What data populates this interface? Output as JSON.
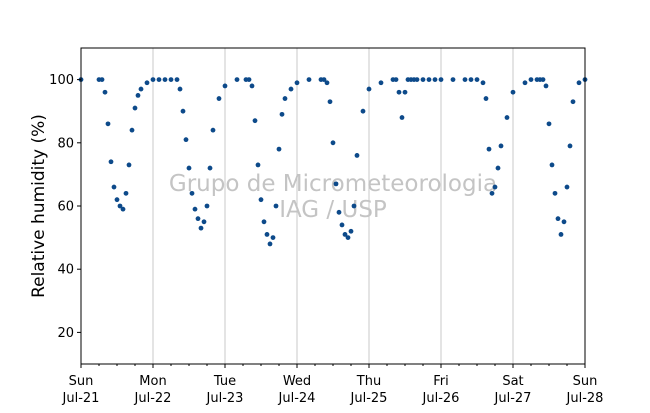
{
  "chart_data": {
    "type": "scatter",
    "ylabel": "Relative humidity (%)",
    "xlabel": "",
    "ylim": [
      10,
      110
    ],
    "y_ticks": [
      20,
      40,
      60,
      80,
      100
    ],
    "xlim": [
      "2019-07-21T00:00",
      "2019-07-28T00:00"
    ],
    "x_ticks": [
      {
        "day": "Sun",
        "date": "Jul-21"
      },
      {
        "day": "Mon",
        "date": "Jul-22"
      },
      {
        "day": "Tue",
        "date": "Jul-23"
      },
      {
        "day": "Wed",
        "date": "Jul-24"
      },
      {
        "day": "Thu",
        "date": "Jul-25"
      },
      {
        "day": "Fri",
        "date": "Jul-26"
      },
      {
        "day": "Sat",
        "date": "Jul-27"
      },
      {
        "day": "Sun",
        "date": "Jul-28"
      }
    ],
    "grid": "vertical",
    "marker_color": "#0d4a8a",
    "watermark": [
      "Grupo de Micrometeorologia",
      "IAG / USP"
    ],
    "series": [
      {
        "x": [
          "2019-07-21T00:00",
          "2019-07-21T06:00",
          "2019-07-21T07:00",
          "2019-07-21T08:00",
          "2019-07-21T09:00",
          "2019-07-21T10:00",
          "2019-07-21T11:00",
          "2019-07-21T12:00",
          "2019-07-21T13:00",
          "2019-07-21T14:00",
          "2019-07-21T15:00",
          "2019-07-21T16:00",
          "2019-07-21T17:00",
          "2019-07-21T18:00",
          "2019-07-21T19:00",
          "2019-07-21T20:00",
          "2019-07-21T22:00",
          "2019-07-22T00:00",
          "2019-07-22T02:00",
          "2019-07-22T04:00",
          "2019-07-22T06:00",
          "2019-07-22T08:00",
          "2019-07-22T09:00",
          "2019-07-22T10:00",
          "2019-07-22T11:00",
          "2019-07-22T12:00",
          "2019-07-22T13:00",
          "2019-07-22T14:00",
          "2019-07-22T15:00",
          "2019-07-22T16:00",
          "2019-07-22T17:00",
          "2019-07-22T18:00",
          "2019-07-22T19:00",
          "2019-07-22T20:00",
          "2019-07-22T22:00",
          "2019-07-23T00:00",
          "2019-07-23T04:00",
          "2019-07-23T07:00",
          "2019-07-23T08:00",
          "2019-07-23T09:00",
          "2019-07-23T10:00",
          "2019-07-23T11:00",
          "2019-07-23T12:00",
          "2019-07-23T13:00",
          "2019-07-23T14:00",
          "2019-07-23T15:00",
          "2019-07-23T16:00",
          "2019-07-23T17:00",
          "2019-07-23T18:00",
          "2019-07-23T19:00",
          "2019-07-23T20:00",
          "2019-07-23T22:00",
          "2019-07-24T00:00",
          "2019-07-24T04:00",
          "2019-07-24T08:00",
          "2019-07-24T09:00",
          "2019-07-24T10:00",
          "2019-07-24T11:00",
          "2019-07-24T12:00",
          "2019-07-24T13:00",
          "2019-07-24T14:00",
          "2019-07-24T15:00",
          "2019-07-24T16:00",
          "2019-07-24T17:00",
          "2019-07-24T18:00",
          "2019-07-24T19:00",
          "2019-07-24T20:00",
          "2019-07-24T22:00",
          "2019-07-25T00:00",
          "2019-07-25T04:00",
          "2019-07-25T08:00",
          "2019-07-25T09:00",
          "2019-07-25T10:00",
          "2019-07-25T11:00",
          "2019-07-25T12:00",
          "2019-07-25T13:00",
          "2019-07-25T14:00",
          "2019-07-25T15:00",
          "2019-07-25T16:00",
          "2019-07-25T18:00",
          "2019-07-25T20:00",
          "2019-07-25T22:00",
          "2019-07-26T00:00",
          "2019-07-26T04:00",
          "2019-07-26T08:00",
          "2019-07-26T10:00",
          "2019-07-26T12:00",
          "2019-07-26T14:00",
          "2019-07-26T15:00",
          "2019-07-26T16:00",
          "2019-07-26T17:00",
          "2019-07-26T18:00",
          "2019-07-26T19:00",
          "2019-07-26T20:00",
          "2019-07-26T22:00",
          "2019-07-27T00:00",
          "2019-07-27T04:00",
          "2019-07-27T06:00",
          "2019-07-27T08:00",
          "2019-07-27T09:00",
          "2019-07-27T10:00",
          "2019-07-27T11:00",
          "2019-07-27T12:00",
          "2019-07-27T13:00",
          "2019-07-27T14:00",
          "2019-07-27T15:00",
          "2019-07-27T16:00",
          "2019-07-27T17:00",
          "2019-07-27T18:00",
          "2019-07-27T19:00",
          "2019-07-27T20:00",
          "2019-07-27T22:00",
          "2019-07-28T00:00"
        ],
        "y": [
          100,
          100,
          100,
          96,
          86,
          74,
          66,
          62,
          60,
          59,
          64,
          73,
          84,
          91,
          95,
          97,
          99,
          100,
          100,
          100,
          100,
          100,
          97,
          90,
          81,
          72,
          64,
          59,
          56,
          53,
          55,
          60,
          72,
          84,
          94,
          98,
          100,
          100,
          100,
          98,
          87,
          73,
          62,
          55,
          51,
          48,
          50,
          60,
          78,
          89,
          94,
          97,
          99,
          100,
          100,
          100,
          99,
          93,
          80,
          67,
          58,
          54,
          51,
          50,
          52,
          60,
          76,
          90,
          97,
          99,
          100,
          100,
          96,
          88,
          96,
          100,
          100,
          100,
          100,
          100,
          100,
          100,
          100,
          100,
          100,
          100,
          100,
          99,
          94,
          78,
          64,
          66,
          72,
          79,
          88,
          96,
          99,
          100,
          100,
          100,
          100,
          98,
          86,
          73,
          64,
          56,
          51,
          55,
          66,
          79,
          93,
          99,
          100
        ]
      }
    ]
  }
}
